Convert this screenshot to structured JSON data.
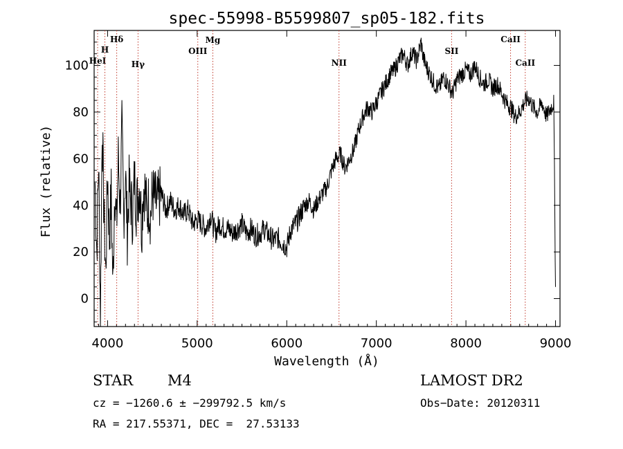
{
  "chart_data": {
    "type": "line",
    "title": "spec-55998-B5599807_sp05-182.fits",
    "xlabel": "Wavelength (Å)",
    "ylabel": "Flux (relative)",
    "xlim": [
      3850,
      9050
    ],
    "ylim": [
      -12,
      115
    ],
    "x_ticks": [
      4000,
      5000,
      6000,
      7000,
      8000,
      9000
    ],
    "y_ticks": [
      0,
      20,
      40,
      60,
      80,
      100
    ],
    "grid": false,
    "series": [
      {
        "x": [
          3860,
          3880,
          3900,
          3920,
          3940,
          3960,
          3980,
          4000,
          4020,
          4040,
          4060,
          4080,
          4100,
          4120,
          4140,
          4160,
          4180,
          4200,
          4220,
          4240,
          4260,
          4280,
          4300,
          4320,
          4340,
          4360,
          4380,
          4400,
          4420,
          4440,
          4460,
          4480,
          4500,
          4550,
          4600,
          4650,
          4700,
          4750,
          4800,
          4850,
          4900,
          4950,
          5000,
          5050,
          5100,
          5150,
          5200,
          5250,
          5300,
          5350,
          5400,
          5450,
          5500,
          5550,
          5600,
          5650,
          5700,
          5750,
          5800,
          5850,
          5900,
          5950,
          6000,
          6050,
          6100,
          6150,
          6200,
          6250,
          6300,
          6350,
          6400,
          6450,
          6500,
          6550,
          6600,
          6650,
          6700,
          6750,
          6800,
          6850,
          6900,
          6950,
          7000,
          7050,
          7100,
          7150,
          7200,
          7250,
          7300,
          7350,
          7400,
          7450,
          7500,
          7520,
          7550,
          7600,
          7650,
          7700,
          7750,
          7800,
          7850,
          7900,
          7950,
          8000,
          8050,
          8100,
          8150,
          8200,
          8250,
          8300,
          8350,
          8400,
          8450,
          8500,
          8550,
          8600,
          8650,
          8700,
          8750,
          8800,
          8850,
          8900,
          8950,
          8980,
          9000
        ],
        "y": [
          50,
          20,
          60,
          -8,
          75,
          35,
          10,
          55,
          25,
          45,
          5,
          50,
          30,
          60,
          40,
          72,
          35,
          55,
          28,
          48,
          42,
          35,
          52,
          40,
          44,
          50,
          30,
          48,
          46,
          36,
          42,
          35,
          45,
          40,
          45,
          38,
          42,
          38,
          40,
          36,
          38,
          32,
          34,
          32,
          30,
          36,
          28,
          32,
          30,
          30,
          28,
          30,
          32,
          28,
          30,
          27,
          28,
          30,
          27,
          25,
          26,
          24,
          22,
          30,
          32,
          36,
          40,
          42,
          38,
          42,
          45,
          48,
          55,
          60,
          62,
          56,
          60,
          64,
          72,
          78,
          82,
          80,
          84,
          88,
          92,
          96,
          98,
          102,
          105,
          100,
          106,
          102,
          110,
          104,
          100,
          96,
          92,
          90,
          95,
          92,
          88,
          94,
          96,
          98,
          96,
          100,
          95,
          92,
          94,
          90,
          92,
          88,
          84,
          82,
          78,
          80,
          84,
          86,
          82,
          80,
          84,
          78,
          82,
          84,
          5
        ],
        "color": "#000000"
      }
    ],
    "lines": [
      {
        "label": "HeI",
        "x": 3889
      },
      {
        "label": "H",
        "x": 3970
      },
      {
        "label": "Hδ",
        "x": 4102
      },
      {
        "label": "Hγ",
        "x": 4340
      },
      {
        "label": "OIII",
        "x": 5007
      },
      {
        "label": "Mg",
        "x": 5175
      },
      {
        "label": "NII",
        "x": 6583
      },
      {
        "label": "SII",
        "x": 7840
      },
      {
        "label": "CaII",
        "x": 8498
      },
      {
        "label": "CaII",
        "x": 8662
      }
    ],
    "line_color": "#c0392b"
  },
  "info": {
    "object_class": "STAR",
    "subclass": "M4",
    "survey": "LAMOST DR2",
    "cz": "cz = −1260.6 ± −299792.5 km/s",
    "obs_date": "Obs−Date: 20120311",
    "coords": "RA = 217.55371, DEC =  27.53133"
  }
}
